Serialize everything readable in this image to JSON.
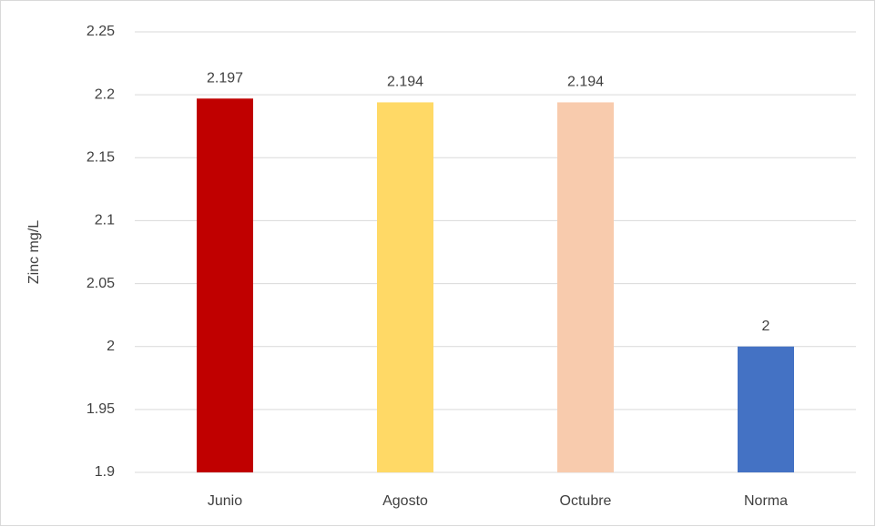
{
  "chart_data": {
    "type": "bar",
    "y_label": "Zinc mg/L",
    "categories": [
      "Junio",
      "Agosto",
      "Octubre",
      "Norma"
    ],
    "values": [
      2.197,
      2.194,
      2.194,
      2
    ],
    "colors": [
      "#c00000",
      "#ffd966",
      "#f8cbad",
      "#4472c4"
    ],
    "ylim": [
      1.9,
      2.25
    ],
    "yticks": [
      1.9,
      1.95,
      2,
      2.05,
      2.1,
      2.15,
      2.2,
      2.25
    ],
    "grid": true
  }
}
